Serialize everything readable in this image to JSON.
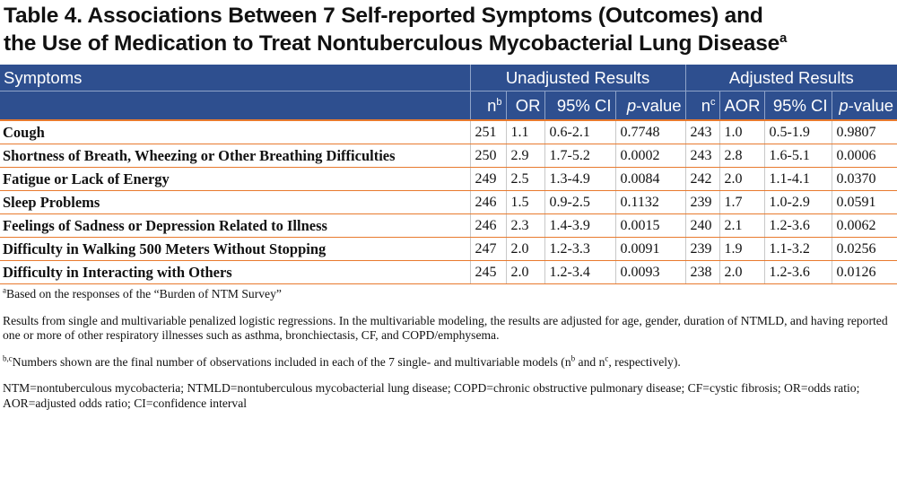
{
  "title": {
    "line1": "Table 4. Associations Between 7 Self-reported Symptoms (Outcomes) and",
    "line2": "the Use of Medication to Treat Nontuberculous Mycobacterial Lung Disease",
    "superscript": "a"
  },
  "header": {
    "symptoms": "Symptoms",
    "unadjusted": "Unadjusted Results",
    "adjusted": "Adjusted Results",
    "n_unadj": "n",
    "n_unadj_sup": "b",
    "or": "OR",
    "ci_unadj": "95% CI",
    "p_unadj_italic": "p",
    "p_unadj_rest": "-value",
    "n_adj": "n",
    "n_adj_sup": "c",
    "aor": "AOR",
    "ci_adj": "95% CI",
    "p_adj_italic": "p",
    "p_adj_rest": "-value"
  },
  "rows": [
    {
      "symptom": "Cough",
      "n1": "251",
      "or": "1.1",
      "ci1": "0.6-2.1",
      "p1": "0.7748",
      "n2": "243",
      "aor": "1.0",
      "ci2": "0.5-1.9",
      "p2": "0.9807"
    },
    {
      "symptom": "Shortness of Breath, Wheezing or Other Breathing Difficulties",
      "n1": "250",
      "or": "2.9",
      "ci1": "1.7-5.2",
      "p1": "0.0002",
      "n2": "243",
      "aor": "2.8",
      "ci2": "1.6-5.1",
      "p2": "0.0006"
    },
    {
      "symptom": "Fatigue or Lack of Energy",
      "n1": "249",
      "or": "2.5",
      "ci1": "1.3-4.9",
      "p1": "0.0084",
      "n2": "242",
      "aor": "2.0",
      "ci2": "1.1-4.1",
      "p2": "0.0370"
    },
    {
      "symptom": "Sleep Problems",
      "n1": "246",
      "or": "1.5",
      "ci1": "0.9-2.5",
      "p1": "0.1132",
      "n2": "239",
      "aor": "1.7",
      "ci2": "1.0-2.9",
      "p2": "0.0591"
    },
    {
      "symptom": "Feelings of Sadness or Depression Related to Illness",
      "n1": "246",
      "or": "2.3",
      "ci1": "1.4-3.9",
      "p1": "0.0015",
      "n2": "240",
      "aor": "2.1",
      "ci2": "1.2-3.6",
      "p2": "0.0062"
    },
    {
      "symptom": "Difficulty in Walking 500 Meters Without Stopping",
      "n1": "247",
      "or": "2.0",
      "ci1": "1.2-3.3",
      "p1": "0.0091",
      "n2": "239",
      "aor": "1.9",
      "ci2": "1.1-3.2",
      "p2": "0.0256"
    },
    {
      "symptom": "Difficulty in Interacting with Others",
      "n1": "245",
      "or": "2.0",
      "ci1": "1.2-3.4",
      "p1": "0.0093",
      "n2": "238",
      "aor": "2.0",
      "ci2": "1.2-3.6",
      "p2": "0.0126"
    }
  ],
  "notes": {
    "a_sup": "a",
    "a_text": "Based on the responses of the “Burden of NTM Survey”",
    "results": "Results from single and multivariable penalized logistic regressions. In the multivariable modeling, the results are adjusted for age, gender, duration of NTMLD, and having reported one or more of other respiratory illnesses such as asthma, bronchiectasis, CF, and COPD/emphysema.",
    "bc_sup": "b,c",
    "bc_text_start": "Numbers shown are the final number of observations included in each of the 7 single- and multivariable models (n",
    "bc_sup_b": "b",
    "bc_mid": " and n",
    "bc_sup_c": "c",
    "bc_end": ", respectively).",
    "abbrev": "NTM=nontuberculous mycobacteria; NTMLD=nontuberculous mycobacterial lung disease; COPD=chronic obstructive pulmonary disease; CF=cystic fibrosis; OR=odds ratio; AOR=adjusted odds ratio; CI=confidence interval"
  }
}
